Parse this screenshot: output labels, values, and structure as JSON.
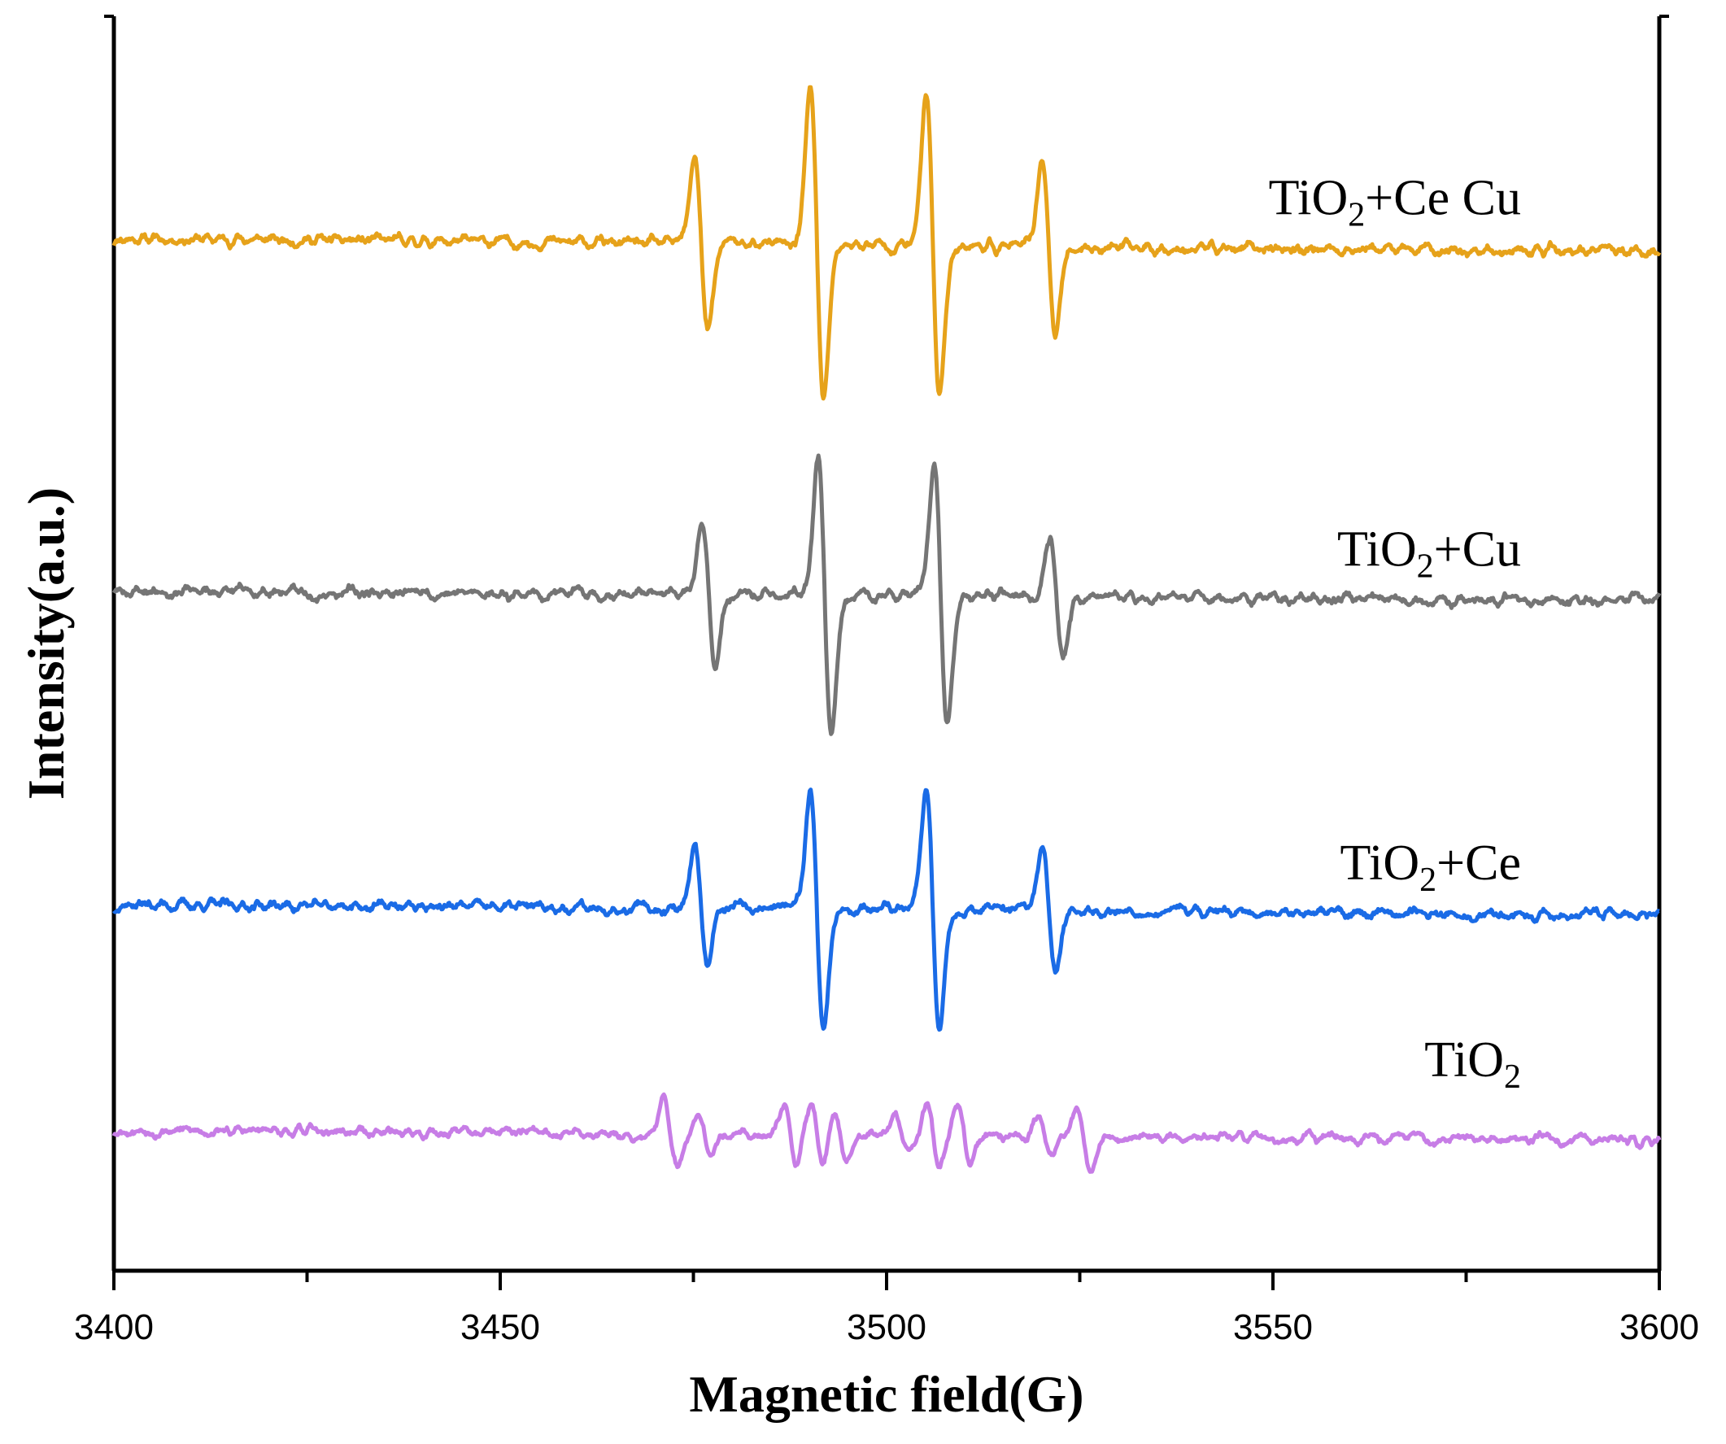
{
  "chart_data": {
    "type": "line",
    "title": "",
    "xlabel": "Magnetic field(G)",
    "ylabel": "Intensity(a.u.)",
    "xlim": [
      3400,
      3600
    ],
    "xticks": [
      3400,
      3450,
      3500,
      3550,
      3600
    ],
    "xtick_labels": [
      "3400",
      "3450",
      "3500",
      "3550",
      "3600"
    ],
    "minor_xticks": [
      3425,
      3475,
      3525,
      3575
    ],
    "y_units": "arbitrary (stacked, baseline offsets in a.u.)",
    "ylim": [
      0,
      100
    ],
    "grid": false,
    "series": [
      {
        "name": "TiO2+Ce Cu",
        "label_main": "TiO",
        "label_sub": "2",
        "label_rest": "+Ce Cu",
        "color": "#E6A21A",
        "baseline": 82,
        "drift": [
          0.3,
          -0.8
        ],
        "noise": 0.55,
        "seed": 11,
        "lines": [
          {
            "center": 3476.0,
            "amp": 7.0
          },
          {
            "center": 3491.0,
            "amp": 12.5
          },
          {
            "center": 3506.0,
            "amp": 12.0
          },
          {
            "center": 3521.0,
            "amp": 7.0
          }
        ]
      },
      {
        "name": "TiO2+Cu",
        "label_main": "TiO",
        "label_sub": "2",
        "label_rest": "+Cu",
        "color": "#757575",
        "baseline": 54,
        "drift": [
          0.2,
          -0.6
        ],
        "noise": 0.55,
        "seed": 23,
        "lines": [
          {
            "center": 3477.0,
            "amp": 5.5
          },
          {
            "center": 3492.0,
            "amp": 11.0
          },
          {
            "center": 3507.0,
            "amp": 10.5
          },
          {
            "center": 3522.0,
            "amp": 4.8
          }
        ]
      },
      {
        "name": "TiO2+Ce",
        "label_main": "TiO",
        "label_sub": "2",
        "label_rest": "+Ce",
        "color": "#1A6BE6",
        "baseline": 29,
        "drift": [
          0.2,
          -0.6
        ],
        "noise": 0.55,
        "seed": 37,
        "lines": [
          {
            "center": 3476.0,
            "amp": 4.8
          },
          {
            "center": 3491.0,
            "amp": 9.5
          },
          {
            "center": 3506.0,
            "amp": 9.8
          },
          {
            "center": 3521.0,
            "amp": 4.6
          }
        ]
      },
      {
        "name": "TiO2",
        "label_main": "TiO",
        "label_sub": "2",
        "label_rest": "",
        "color": "#C77DE6",
        "baseline": 11,
        "drift": [
          0.2,
          -0.6
        ],
        "noise": 0.5,
        "seed": 53,
        "lines": [
          {
            "center": 3472.0,
            "amp": 2.6
          },
          {
            "center": 3476.5,
            "amp": 1.5
          },
          {
            "center": 3487.5,
            "amp": 2.4
          },
          {
            "center": 3491.0,
            "amp": 2.6
          },
          {
            "center": 3494.0,
            "amp": 2.2
          },
          {
            "center": 3502.0,
            "amp": 1.6
          },
          {
            "center": 3506.0,
            "amp": 2.4
          },
          {
            "center": 3510.0,
            "amp": 2.4
          },
          {
            "center": 3520.5,
            "amp": 1.4
          },
          {
            "center": 3525.5,
            "amp": 2.5
          }
        ]
      }
    ]
  }
}
